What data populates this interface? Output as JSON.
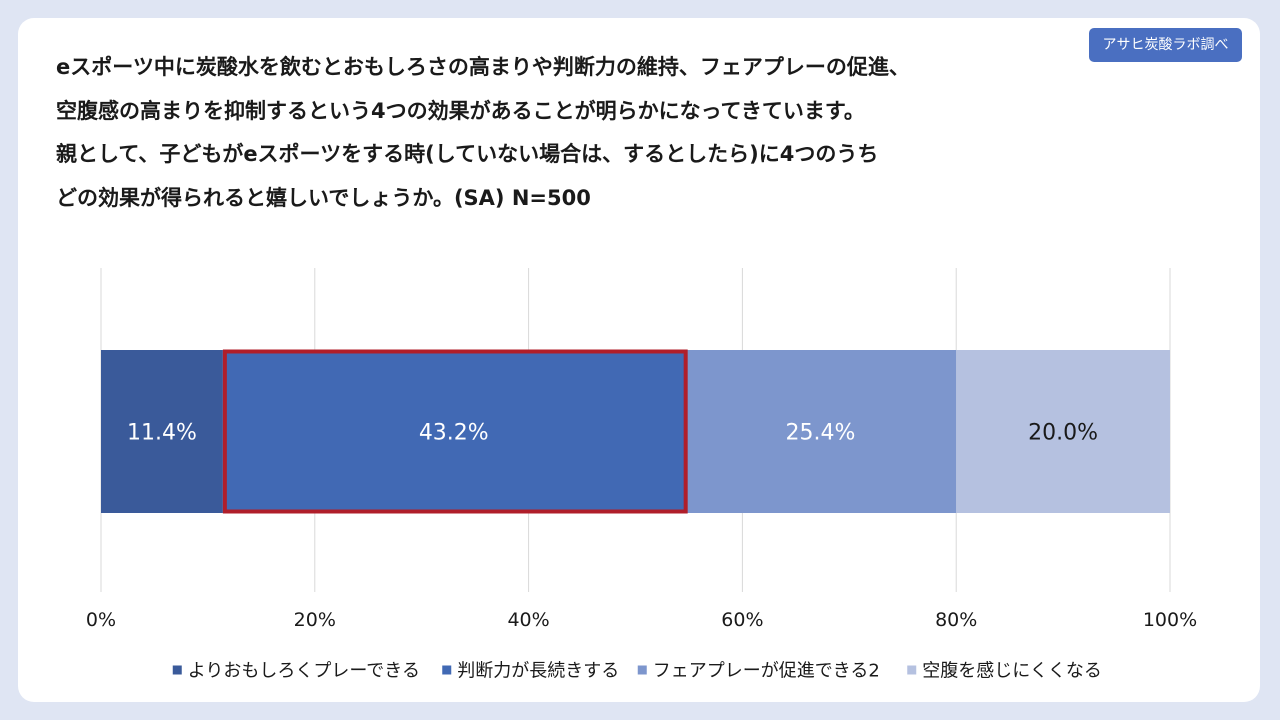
{
  "badge": {
    "label": "アサヒ炭酸ラボ調べ"
  },
  "question_lines": [
    "eスポーツ中に炭酸水を飲むとおもしろさの高まりや判断力の維持、フェアプレーの促進、",
    "空腹感の高まりを抑制するという4つの効果があることが明らかになってきています。",
    "親として、子どもがeスポーツをする時(していない場合は、するとしたら)に4つのうち",
    "どの効果が得られると嬉しいでしょうか。(SA) N=500"
  ],
  "chart_data": {
    "type": "bar",
    "orientation": "horizontal",
    "stacked": true,
    "percent_stacked": true,
    "categories": [
      ""
    ],
    "series": [
      {
        "name": "よりおもしろくプレーできる",
        "values": [
          11.4
        ],
        "label": "11.4%",
        "color": "#3a5a9a"
      },
      {
        "name": "判断力が長続きする",
        "values": [
          43.2
        ],
        "label": "43.2%",
        "color": "#4169b4"
      },
      {
        "name": "フェアプレーが促進できる2",
        "values": [
          25.4
        ],
        "label": "25.4%",
        "color": "#7d96cd"
      },
      {
        "name": "空腹を感じにくくなる",
        "values": [
          20.0
        ],
        "label": "20.0%",
        "color": "#b5c1e0"
      }
    ],
    "label_colors": [
      "#ffffff",
      "#ffffff",
      "#ffffff",
      "#1a1a1a"
    ],
    "xlim": [
      0,
      100
    ],
    "xticks": [
      "0%",
      "20%",
      "40%",
      "60%",
      "80%",
      "100%"
    ],
    "grid": true,
    "legend_position": "bottom",
    "highlight": {
      "series": "判断力が長続きする",
      "color": "#b01e2a"
    }
  }
}
